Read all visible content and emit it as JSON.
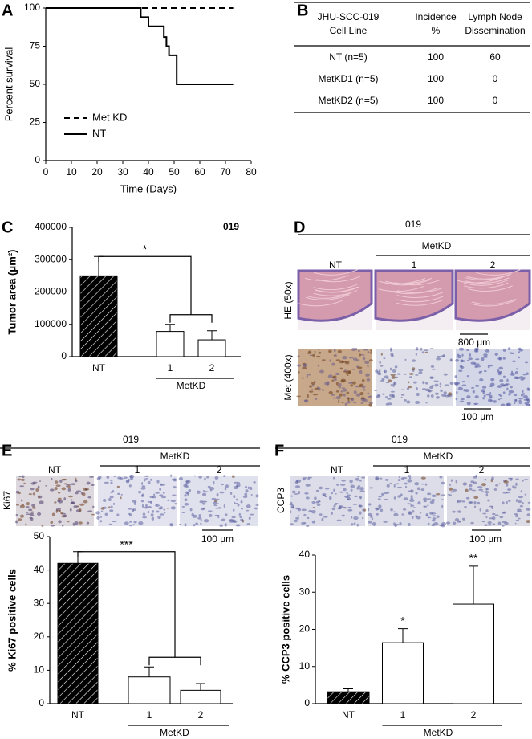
{
  "panel_labels": [
    "A",
    "B",
    "C",
    "D",
    "E",
    "F"
  ],
  "chart_data": [
    {
      "type": "line",
      "step": true,
      "xlabel": "Time (Days)",
      "ylabel": "Percent survival",
      "xlim": [
        0,
        80
      ],
      "xticks": [
        0,
        10,
        20,
        30,
        40,
        50,
        60,
        70,
        80
      ],
      "ylim": [
        0,
        100
      ],
      "yticks": [
        0,
        25,
        50,
        75,
        100
      ],
      "color": "#000000",
      "series": [
        {
          "name": "Met KD",
          "dash": true,
          "x": [
            0,
            73
          ],
          "values": [
            100,
            100
          ]
        },
        {
          "name": "NT",
          "dash": false,
          "x": [
            0,
            37,
            40,
            46,
            47,
            48,
            51,
            73
          ],
          "values": [
            100,
            94,
            88,
            81,
            75,
            69,
            50,
            50
          ]
        }
      ]
    },
    {
      "type": "bar",
      "ylabel": "Tumor area (μm²)",
      "annotation": "019",
      "significance": "*",
      "categories": [
        "NT",
        "1",
        "2"
      ],
      "group_label": "MetKD",
      "values": [
        250000,
        78000,
        52000
      ],
      "errors": [
        60000,
        22000,
        28000
      ],
      "colors": [
        "#000000",
        "#ffffff",
        "#ffffff"
      ],
      "hatch": [
        true,
        false,
        false
      ],
      "ylim": [
        0,
        400000
      ],
      "yticks": [
        0,
        100000,
        200000,
        300000,
        400000
      ]
    },
    {
      "type": "bar",
      "ylabel": "% Ki67 positive cells",
      "significance": "***",
      "categories": [
        "NT",
        "1",
        "2"
      ],
      "group_label": "MetKD",
      "values": [
        42,
        8,
        4
      ],
      "errors": [
        3.5,
        3,
        2
      ],
      "colors": [
        "#000000",
        "#ffffff",
        "#ffffff"
      ],
      "hatch": [
        true,
        false,
        false
      ],
      "ylim": [
        0,
        50
      ],
      "yticks": [
        0,
        10,
        20,
        30,
        40,
        50
      ]
    },
    {
      "type": "bar",
      "ylabel": "% CCP3 positive cells",
      "bar_annotations": [
        null,
        "*",
        "**"
      ],
      "categories": [
        "NT",
        "1",
        "2"
      ],
      "group_label": "MetKD",
      "values": [
        3.2,
        16.4,
        26.8
      ],
      "errors": [
        0.8,
        3.8,
        10.2
      ],
      "colors": [
        "#000000",
        "#ffffff",
        "#ffffff"
      ],
      "hatch": [
        true,
        false,
        false
      ],
      "ylim": [
        0,
        40
      ],
      "yticks": [
        0,
        10,
        20,
        30,
        40
      ]
    }
  ],
  "table": {
    "header": [
      [
        "JHU-SCC-019",
        "Cell Line"
      ],
      [
        "Incidence",
        "%"
      ],
      [
        "Lymph Node",
        "Dissemination"
      ]
    ],
    "rows": [
      [
        "NT (n=5)",
        100,
        60
      ],
      [
        "MetKD1 (n=5)",
        100,
        0
      ],
      [
        "MetKD2 (n=5)",
        100,
        0
      ]
    ]
  },
  "micrographs": [
    {
      "title": "019",
      "group_label": "MetKD",
      "columns": [
        "NT",
        "1",
        "2"
      ],
      "rows": [
        "HE (50x)",
        "Met (400x)"
      ],
      "scale_bars": [
        "800 μm",
        "100 μm"
      ]
    },
    {
      "title": "019",
      "group_label": "MetKD",
      "columns": [
        "NT",
        "1",
        "2"
      ],
      "rows": [
        "Ki67"
      ],
      "scale_bars": [
        "100 μm"
      ]
    },
    {
      "title": "019",
      "group_label": "MetKD",
      "columns": [
        "NT",
        "1",
        "2"
      ],
      "rows": [
        "CCP3"
      ],
      "scale_bars": [
        "100 μm"
      ]
    }
  ]
}
